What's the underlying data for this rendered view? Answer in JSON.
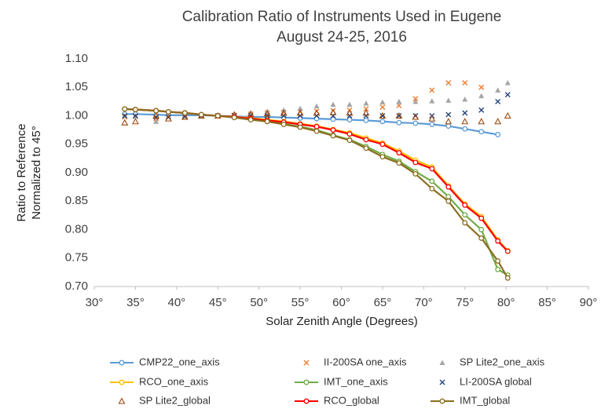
{
  "chart_data": {
    "type": "line",
    "title": "Calibration Ratio of Instruments Used in Eugene",
    "subtitle": "August 24-25, 2016",
    "x_label": "Solar Zenith Angle (Degrees)",
    "y_label": [
      "Ratio to Reference",
      "Normalized to 45°"
    ],
    "xlim": [
      30,
      90
    ],
    "xticks": [
      {
        "value": 30,
        "label": "30°"
      },
      {
        "value": 35,
        "label": "35°"
      },
      {
        "value": 40,
        "label": "40°"
      },
      {
        "value": 45,
        "label": "45°"
      },
      {
        "value": 50,
        "label": "50°"
      },
      {
        "value": 55,
        "label": "55°"
      },
      {
        "value": 60,
        "label": "60°"
      },
      {
        "value": 65,
        "label": "65°"
      },
      {
        "value": 70,
        "label": "70°"
      },
      {
        "value": 75,
        "label": "75°"
      },
      {
        "value": 80,
        "label": "80°"
      },
      {
        "value": 85,
        "label": "85°"
      },
      {
        "value": 90,
        "label": "90°"
      }
    ],
    "ylim": [
      0.7,
      1.1
    ],
    "yticks": [
      {
        "value": 0.7,
        "label": "0.70"
      },
      0.75,
      {
        "value": 0.8,
        "label": "0.80"
      },
      0.85,
      {
        "value": 0.9,
        "label": "0.90"
      },
      0.95,
      {
        "value": 1.0,
        "label": "1.00"
      },
      1.05,
      {
        "value": 1.1,
        "label": "1.10"
      }
    ],
    "grid": false,
    "legend": "bottom",
    "x": [
      33.7,
      35,
      37.5,
      39,
      41,
      43,
      45,
      47,
      49,
      51,
      53,
      55,
      57,
      59,
      61,
      63,
      65,
      67,
      69,
      71,
      73,
      75,
      77,
      79,
      80.2
    ],
    "series": [
      {
        "name": "CMP22_one_axis",
        "color": "#5b9bd5",
        "marker": "circle",
        "line": true,
        "values": [
          1.003,
          1.003,
          1.002,
          1.001,
          1.001,
          1.001,
          1.0,
          0.999,
          0.998,
          0.998,
          0.997,
          0.996,
          0.995,
          0.994,
          0.993,
          0.992,
          0.99,
          0.988,
          0.987,
          0.985,
          0.982,
          0.977,
          0.972,
          0.967,
          null
        ]
      },
      {
        "name": "II-200SA one_axis",
        "color": "#ed7d31",
        "marker": "x",
        "line": false,
        "values": [
          0.998,
          0.999,
          0.995,
          0.997,
          0.998,
          1.0,
          1.0,
          1.001,
          1.003,
          1.005,
          1.006,
          1.007,
          1.008,
          1.009,
          1.01,
          1.012,
          1.015,
          1.018,
          1.03,
          1.045,
          1.058,
          1.058,
          1.05,
          null,
          null
        ]
      },
      {
        "name": "SP Lite2_one_axis",
        "color": "#a5a5a5",
        "marker": "triangle",
        "line": false,
        "values": [
          1.0,
          1.0,
          0.99,
          1.0,
          1.0,
          1.0,
          1.0,
          1.002,
          1.005,
          1.008,
          1.01,
          1.013,
          1.017,
          1.02,
          1.02,
          1.022,
          1.024,
          1.025,
          1.025,
          1.026,
          1.027,
          1.029,
          1.035,
          1.045,
          1.058
        ]
      },
      {
        "name": "RCO_one_axis",
        "color": "#ffc000",
        "marker": "circle",
        "line": true,
        "values": [
          1.012,
          1.011,
          1.009,
          1.007,
          1.005,
          1.002,
          1.0,
          0.998,
          0.996,
          0.993,
          0.99,
          0.986,
          0.982,
          0.976,
          0.97,
          0.961,
          0.952,
          0.938,
          0.922,
          0.91,
          0.877,
          0.845,
          0.823,
          0.782,
          0.763
        ]
      },
      {
        "name": "IMT_one_axis",
        "color": "#70ad47",
        "marker": "circle",
        "line": true,
        "values": [
          1.012,
          1.011,
          1.009,
          1.007,
          1.005,
          1.002,
          1.0,
          0.997,
          0.994,
          0.99,
          0.986,
          0.981,
          0.975,
          0.966,
          0.958,
          0.946,
          0.932,
          0.92,
          0.902,
          0.885,
          0.858,
          0.826,
          0.8,
          0.73,
          0.72
        ]
      },
      {
        "name": "LI-200SA global",
        "color": "#264478",
        "marker": "x",
        "line": false,
        "values": [
          1.0,
          1.0,
          0.998,
          0.998,
          0.999,
          1.0,
          1.0,
          1.0,
          1.0,
          1.0,
          1.0,
          1.0,
          1.0,
          1.0,
          1.0,
          1.0,
          1.0,
          1.0,
          1.0,
          1.0,
          1.002,
          1.005,
          1.01,
          1.025,
          1.037
        ]
      },
      {
        "name": "SP Lite2_global",
        "color": "#9e480e",
        "marker": "triangle-open",
        "line": false,
        "values": [
          0.988,
          0.99,
          1.0,
          0.995,
          0.998,
          1.0,
          1.0,
          1.002,
          1.003,
          1.004,
          1.005,
          1.005,
          1.005,
          1.006,
          1.005,
          1.005,
          1.0,
          1.0,
          0.998,
          0.995,
          0.99,
          0.99,
          0.99,
          0.99,
          1.0
        ]
      },
      {
        "name": "RCO_global",
        "color": "#ff0000",
        "marker": "circle",
        "line": true,
        "values": [
          1.012,
          1.011,
          1.009,
          1.007,
          1.005,
          1.002,
          1.0,
          0.998,
          0.995,
          0.992,
          0.989,
          0.985,
          0.981,
          0.975,
          0.968,
          0.958,
          0.95,
          0.935,
          0.918,
          0.907,
          0.875,
          0.843,
          0.82,
          0.78,
          0.762
        ]
      },
      {
        "name": "IMT_global",
        "color": "#8c6d1f",
        "marker": "circle",
        "line": true,
        "values": [
          1.012,
          1.011,
          1.009,
          1.007,
          1.005,
          1.002,
          1.0,
          0.997,
          0.993,
          0.99,
          0.985,
          0.98,
          0.973,
          0.965,
          0.957,
          0.943,
          0.928,
          0.917,
          0.898,
          0.872,
          0.85,
          0.812,
          0.785,
          0.745,
          0.715
        ]
      }
    ]
  }
}
